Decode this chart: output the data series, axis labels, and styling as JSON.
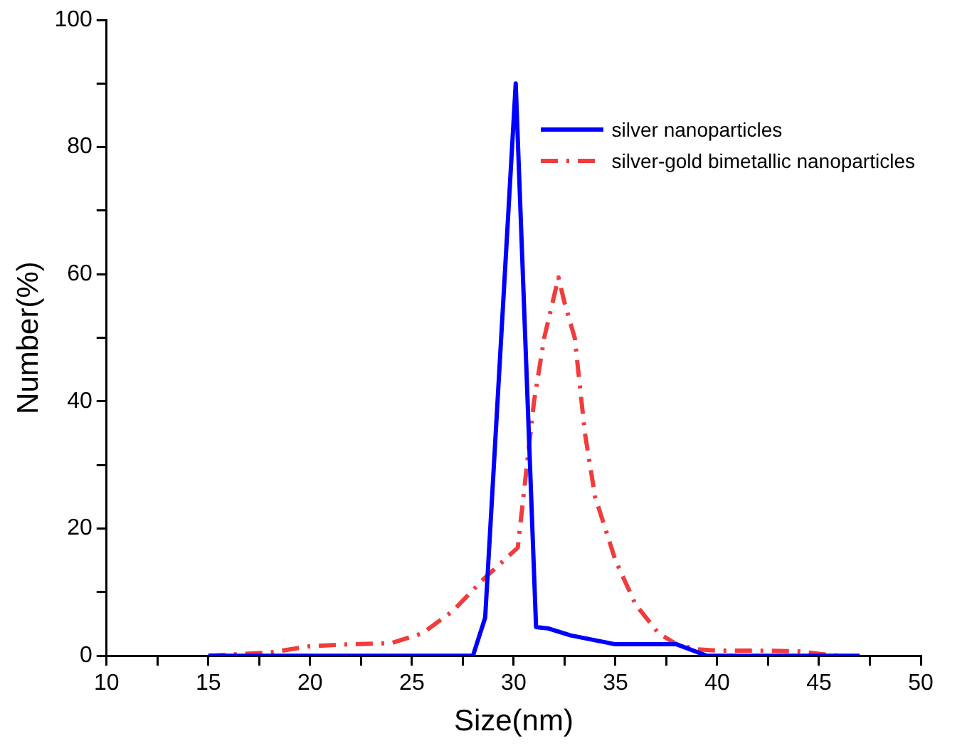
{
  "chart_data": {
    "type": "line",
    "xlabel": "Size(nm)",
    "ylabel": "Number(%)",
    "xlim": [
      10,
      50
    ],
    "ylim": [
      0,
      100
    ],
    "xticks": [
      10,
      {
        "value": 12.5,
        "label": null
      },
      15,
      {
        "value": 17.5,
        "label": null
      },
      20,
      {
        "value": 22.5,
        "label": null
      },
      25,
      {
        "value": 27.5,
        "label": null
      },
      30,
      {
        "value": 32.5,
        "label": null
      },
      35,
      {
        "value": 37.5,
        "label": null
      },
      40,
      {
        "value": 42.5,
        "label": null
      },
      45,
      {
        "value": 47.5,
        "label": null
      },
      50
    ],
    "yticks": [
      0,
      {
        "value": 10,
        "label": null
      },
      20,
      {
        "value": 30,
        "label": null
      },
      40,
      {
        "value": 50,
        "label": null
      },
      60,
      {
        "value": 70,
        "label": null
      },
      80,
      {
        "value": 90,
        "label": null
      },
      100
    ],
    "grid": false,
    "legend": "top right",
    "marker": "none",
    "series": [
      {
        "name": "silver nanoparticles",
        "color": "#0000ff",
        "line_style": "solid",
        "x": [
          15,
          20,
          25,
          28,
          28.6,
          30.1,
          31.1,
          31.7,
          32.8,
          35,
          38,
          39.5,
          42,
          47
        ],
        "values": [
          0,
          0,
          0,
          0,
          6,
          90,
          4.5,
          4.3,
          3.2,
          1.8,
          1.8,
          0,
          0,
          0
        ]
      },
      {
        "name": "silver-gold bimetallic nanoparticles",
        "color": "#f03c3c",
        "line_style": "dashed",
        "x": [
          15,
          18,
          20,
          22,
          24,
          25.5,
          27,
          28.5,
          30.2,
          31,
          31.5,
          32.2,
          32.5,
          33,
          33.5,
          34,
          35,
          36,
          37.1,
          38,
          39,
          40,
          42,
          44,
          45,
          46
        ],
        "values": [
          0,
          0.5,
          1.5,
          1.8,
          2,
          3.5,
          7,
          12,
          17,
          40,
          50,
          59.5,
          55.5,
          50,
          35,
          25,
          15,
          8,
          3.6,
          1.8,
          1,
          0.8,
          0.8,
          0.7,
          0.3,
          0
        ]
      }
    ]
  }
}
